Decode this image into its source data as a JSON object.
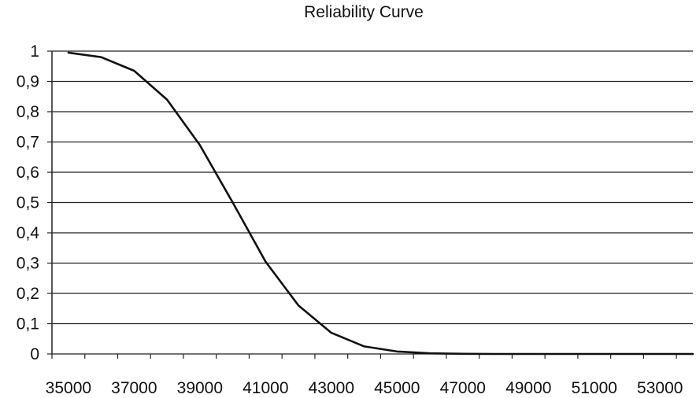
{
  "chart_data": {
    "type": "line",
    "title": "Reliability Curve",
    "xlabel": "",
    "ylabel": "",
    "xlim": [
      34500,
      54000
    ],
    "ylim": [
      0,
      1
    ],
    "x_ticks": [
      "35000",
      "37000",
      "39000",
      "41000",
      "43000",
      "45000",
      "47000",
      "49000",
      "51000",
      "53000"
    ],
    "y_ticks": [
      "0",
      "0,1",
      "0,2",
      "0,3",
      "0,4",
      "0,5",
      "0,6",
      "0,7",
      "0,8",
      "0,9",
      "1"
    ],
    "grid": "horizontal",
    "legend": "none",
    "line_color": "#111111",
    "series": [
      {
        "x": [
          35000,
          36000,
          37000,
          38000,
          39000,
          40000,
          41000,
          42000,
          43000,
          44000,
          45000,
          46000,
          47000,
          48000,
          50000,
          52000,
          54000
        ],
        "values": [
          0.995,
          0.98,
          0.935,
          0.84,
          0.69,
          0.5,
          0.305,
          0.16,
          0.07,
          0.025,
          0.008,
          0.002,
          0.0005,
          0.0001,
          0,
          0,
          0
        ]
      }
    ]
  }
}
